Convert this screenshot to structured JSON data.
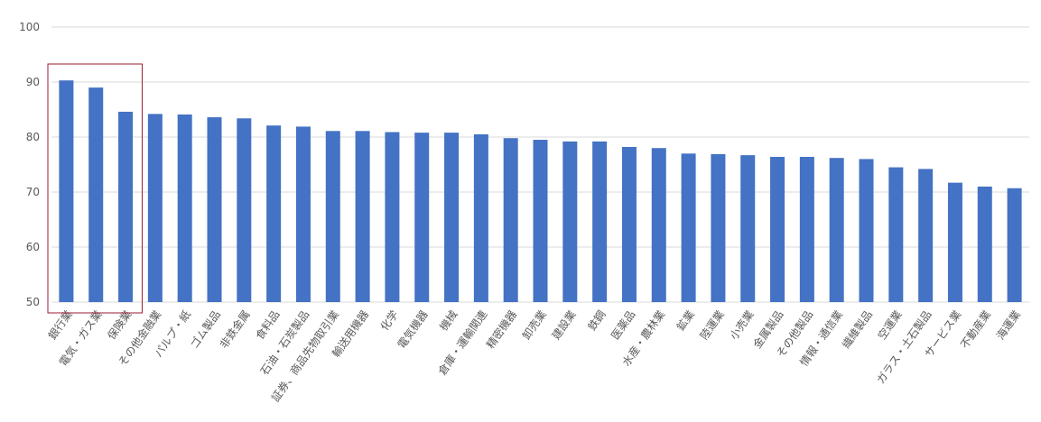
{
  "chart_data": {
    "type": "bar",
    "categories": [
      "銀行業",
      "電気・ガス業",
      "保険業",
      "その他金融業",
      "パルプ・紙",
      "ゴム製品",
      "非鉄金属",
      "食料品",
      "石油・石炭製品",
      "証券、商品先物取引業",
      "輸送用機器",
      "化学",
      "電気機器",
      "機械",
      "倉庫・運輸関連",
      "精密機器",
      "卸売業",
      "建設業",
      "鉄鋼",
      "医薬品",
      "水産・農林業",
      "鉱業",
      "陸運業",
      "小売業",
      "金属製品",
      "その他製品",
      "情報・通信業",
      "繊維製品",
      "空運業",
      "ガラス・土石製品",
      "サービス業",
      "不動産業",
      "海運業"
    ],
    "values": [
      90.3,
      89.0,
      84.6,
      84.2,
      84.1,
      83.6,
      83.4,
      82.1,
      81.9,
      81.1,
      81.1,
      80.9,
      80.8,
      80.8,
      80.5,
      79.8,
      79.5,
      79.2,
      79.2,
      78.2,
      78.0,
      77.0,
      76.9,
      76.7,
      76.4,
      76.4,
      76.2,
      76.0,
      74.5,
      74.2,
      71.7,
      71.0,
      70.7
    ],
    "y_ticks": [
      "100",
      "90",
      "80",
      "70",
      "60",
      "50"
    ],
    "ylim": [
      50,
      100
    ],
    "grid": true,
    "bar_color": "#4472C4",
    "grid_color": "#D9D9D9",
    "highlight": {
      "first_index": 0,
      "last_index": 2,
      "border_color": "#9B1B30"
    }
  }
}
